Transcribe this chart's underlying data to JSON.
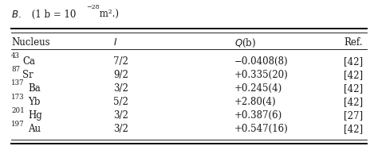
{
  "caption_italic": "B.",
  "caption_rest": " (1 b = 10",
  "caption_sup": "−28",
  "caption_end": " m².)",
  "rows": [
    {
      "nucleus": "43",
      "element": "Ca",
      "I": "7/2",
      "Q": "−0.0408(8)",
      "ref": "[42]"
    },
    {
      "nucleus": "87",
      "element": "Sr",
      "I": "9/2",
      "Q": "+0.335(20)",
      "ref": "[42]"
    },
    {
      "nucleus": "137",
      "element": "Ba",
      "I": "3/2",
      "Q": "+0.245(4)",
      "ref": "[42]"
    },
    {
      "nucleus": "173",
      "element": "Yb",
      "I": "5/2",
      "Q": "+2.80(4)",
      "ref": "[42]"
    },
    {
      "nucleus": "201",
      "element": "Hg",
      "I": "3/2",
      "Q": "+0.387(6)",
      "ref": "[27]"
    },
    {
      "nucleus": "197",
      "element": "Au",
      "I": "3/2",
      "Q": "+0.547(16)",
      "ref": "[42]"
    }
  ],
  "col_nucleus": 0.03,
  "col_I": 0.3,
  "col_Q": 0.62,
  "col_ref": 0.91,
  "fontsize": 8.5,
  "small_fontsize": 6.2,
  "background": "#f0f0f0",
  "text_color": "#1a1a1a"
}
